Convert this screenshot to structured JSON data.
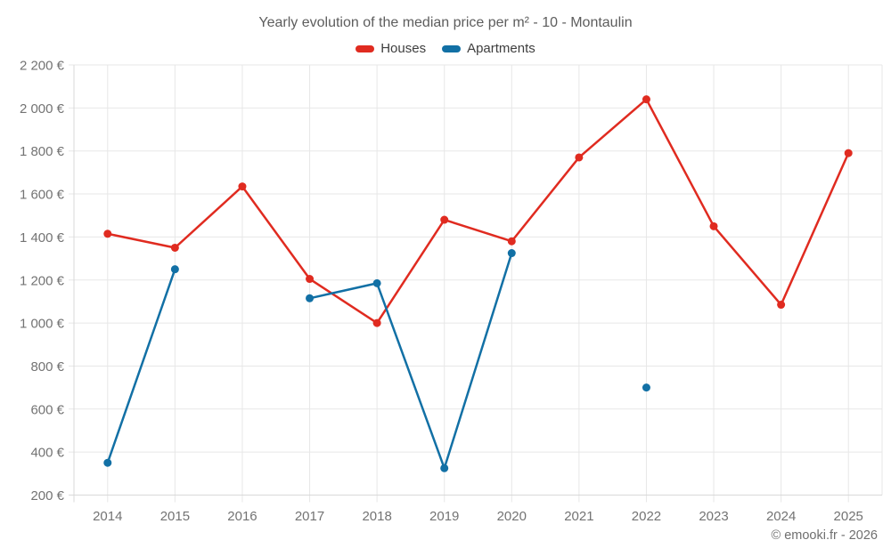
{
  "chart_data": {
    "type": "line",
    "title": "Yearly evolution of the median price per m² - 10 - Montaulin",
    "categories": [
      "2014",
      "2015",
      "2016",
      "2017",
      "2018",
      "2019",
      "2020",
      "2021",
      "2022",
      "2023",
      "2024",
      "2025"
    ],
    "series": [
      {
        "name": "Houses",
        "color": "#e02b20",
        "values": [
          1415,
          1350,
          1635,
          1205,
          1000,
          1480,
          1380,
          1770,
          2040,
          1450,
          1085,
          1790
        ]
      },
      {
        "name": "Apartments",
        "color": "#1270a5",
        "values": [
          350,
          1250,
          null,
          1115,
          1185,
          325,
          1325,
          null,
          700,
          null,
          null,
          null
        ]
      }
    ],
    "xlabel": "",
    "ylabel": "",
    "ylim": [
      200,
      2200
    ],
    "yticks": [
      200,
      400,
      600,
      800,
      1000,
      1200,
      1400,
      1600,
      1800,
      2000,
      2200
    ],
    "ytick_labels": [
      "200 €",
      "400 €",
      "600 €",
      "800 €",
      "1 000 €",
      "1 200 €",
      "1 400 €",
      "1 600 €",
      "1 800 €",
      "2 000 €",
      "2 200 €"
    ],
    "grid": true,
    "legend_position": "top",
    "copyright": "© emooki.fr - 2026"
  },
  "colors": {
    "background": "#ffffff",
    "grid": "#e7e7e7",
    "axis": "#d8d8d8",
    "axis_text": "#737373",
    "title_text": "#5d5d5d",
    "legend_text": "#3e3e3e"
  }
}
